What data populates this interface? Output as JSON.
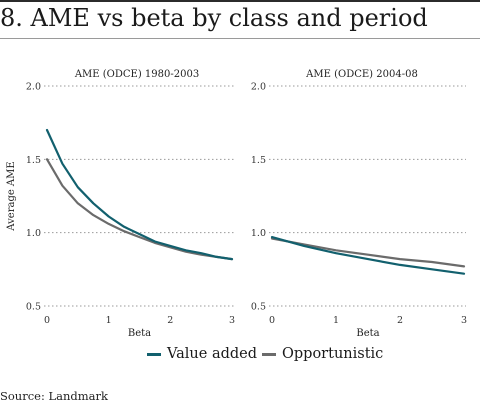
{
  "header": {
    "title": "8. AME vs beta by class and period"
  },
  "source": "Source: Landmark",
  "colors": {
    "value_added": "#12606e",
    "opportunistic": "#6b6b6b",
    "grid": "#9a9a9a"
  },
  "chart_data": [
    {
      "type": "line",
      "title": "AME (ODCE) 1980-2003",
      "xlabel": "Beta",
      "ylabel": "Average AME",
      "xlim": [
        0,
        3
      ],
      "ylim": [
        0.5,
        2.0
      ],
      "xticks": [
        "0",
        "1",
        "2",
        "3"
      ],
      "yticks": [
        "0.5",
        "1.0",
        "1.5",
        "2.0"
      ],
      "grid": "horizontal-dotted",
      "series": [
        {
          "name": "Value added",
          "x": [
            0,
            0.25,
            0.5,
            0.75,
            1,
            1.25,
            1.5,
            1.75,
            2,
            2.25,
            2.5,
            2.75,
            3
          ],
          "values": [
            1.7,
            1.47,
            1.31,
            1.2,
            1.11,
            1.04,
            0.99,
            0.94,
            0.91,
            0.88,
            0.86,
            0.835,
            0.82
          ]
        },
        {
          "name": "Opportunistic",
          "x": [
            0,
            0.25,
            0.5,
            0.75,
            1,
            1.25,
            1.5,
            1.75,
            2,
            2.25,
            2.5,
            2.75,
            3
          ],
          "values": [
            1.5,
            1.32,
            1.2,
            1.12,
            1.06,
            1.01,
            0.97,
            0.93,
            0.9,
            0.87,
            0.85,
            0.835,
            0.82
          ]
        }
      ]
    },
    {
      "type": "line",
      "title": "AME (ODCE) 2004-08",
      "xlabel": "Beta",
      "ylabel": "",
      "xlim": [
        0,
        3
      ],
      "ylim": [
        0.5,
        2.0
      ],
      "xticks": [
        "0",
        "1",
        "2",
        "3"
      ],
      "yticks": [
        "0.5",
        "1.0",
        "1.5",
        "2.0"
      ],
      "grid": "horizontal-dotted",
      "series": [
        {
          "name": "Value added",
          "x": [
            0,
            0.5,
            1,
            1.5,
            2,
            2.5,
            3
          ],
          "values": [
            0.97,
            0.91,
            0.86,
            0.82,
            0.78,
            0.75,
            0.72
          ]
        },
        {
          "name": "Opportunistic",
          "x": [
            0,
            0.5,
            1,
            1.5,
            2,
            2.5,
            3
          ],
          "values": [
            0.96,
            0.92,
            0.88,
            0.85,
            0.82,
            0.8,
            0.77
          ]
        }
      ]
    }
  ],
  "legend": {
    "placement": "bottom-center",
    "items": [
      {
        "label": "Value added",
        "color": "#12606e"
      },
      {
        "label": "Opportunistic",
        "color": "#6b6b6b"
      }
    ]
  }
}
